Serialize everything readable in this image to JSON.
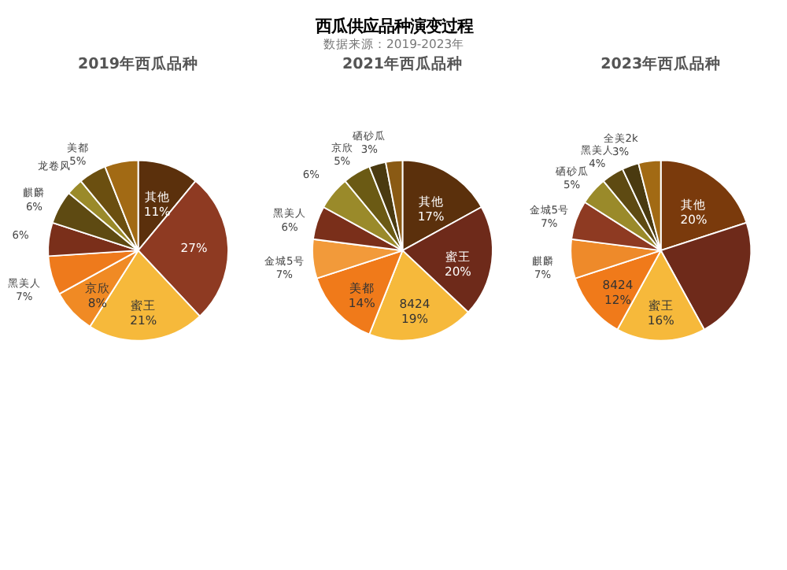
{
  "chart_data": [
    {
      "type": "pie",
      "title": "2019年西瓜品种",
      "annotations": [
        "西瓜供应品种演变过程",
        "数据来源：2019-2023年"
      ],
      "categories": [
        "其他",
        null,
        "蜜王",
        "京欣",
        "黑美人",
        null,
        "麒麟",
        "龙卷风",
        "美都",
        null
      ],
      "values": [
        11,
        27,
        21,
        8,
        7,
        6,
        6,
        3,
        5,
        6
      ],
      "value_labels": [
        "11%",
        "27%",
        "21%",
        "8%",
        "7%",
        "6%",
        "6%",
        null,
        "5%",
        null
      ],
      "colors": [
        "#5b300c",
        "#8e3a22",
        "#f6b93b",
        "#f08a24",
        "#ee7a1c",
        "#7a2f1a",
        "#5e4a12",
        "#9a8a2a",
        "#6b4f10",
        "#a26a14"
      ]
    },
    {
      "type": "pie",
      "title": "2021年西瓜品种",
      "categories": [
        "其他",
        "蜜王",
        "8424",
        "美都",
        "金城5号",
        "黑美人",
        null,
        "京欣",
        "硒砂瓜",
        null
      ],
      "values": [
        17,
        20,
        19,
        14,
        7,
        6,
        6,
        5,
        3,
        3
      ],
      "value_labels": [
        "17%",
        "20%",
        "19%",
        "14%",
        "7%",
        "6%",
        "6%",
        "5%",
        "3%",
        null
      ],
      "colors": [
        "#5b300c",
        "#6e2a1a",
        "#f6b93b",
        "#f07a1a",
        "#f29a3a",
        "#7a2f1a",
        "#9a8a2a",
        "#6b5a14",
        "#4a3a10",
        "#8a5a14"
      ]
    },
    {
      "type": "pie",
      "title": "2023年西瓜品种",
      "categories": [
        "其他",
        null,
        "蜜王",
        "8424",
        "麒麟",
        "金城5号",
        "硒砂瓜",
        "黑美人",
        "全美2k",
        null
      ],
      "values": [
        20,
        22,
        16,
        12,
        7,
        7,
        5,
        4,
        3,
        4
      ],
      "value_labels": [
        "20%",
        null,
        "16%",
        "12%",
        "7%",
        "7%",
        "5%",
        "4%",
        "3%",
        null
      ],
      "colors": [
        "#7a3a0c",
        "#6e2a1a",
        "#f6b93b",
        "#f07a1a",
        "#ee8a2a",
        "#8e3a22",
        "#9a8a2a",
        "#5e4a12",
        "#4a3a10",
        "#a26a14"
      ]
    }
  ]
}
